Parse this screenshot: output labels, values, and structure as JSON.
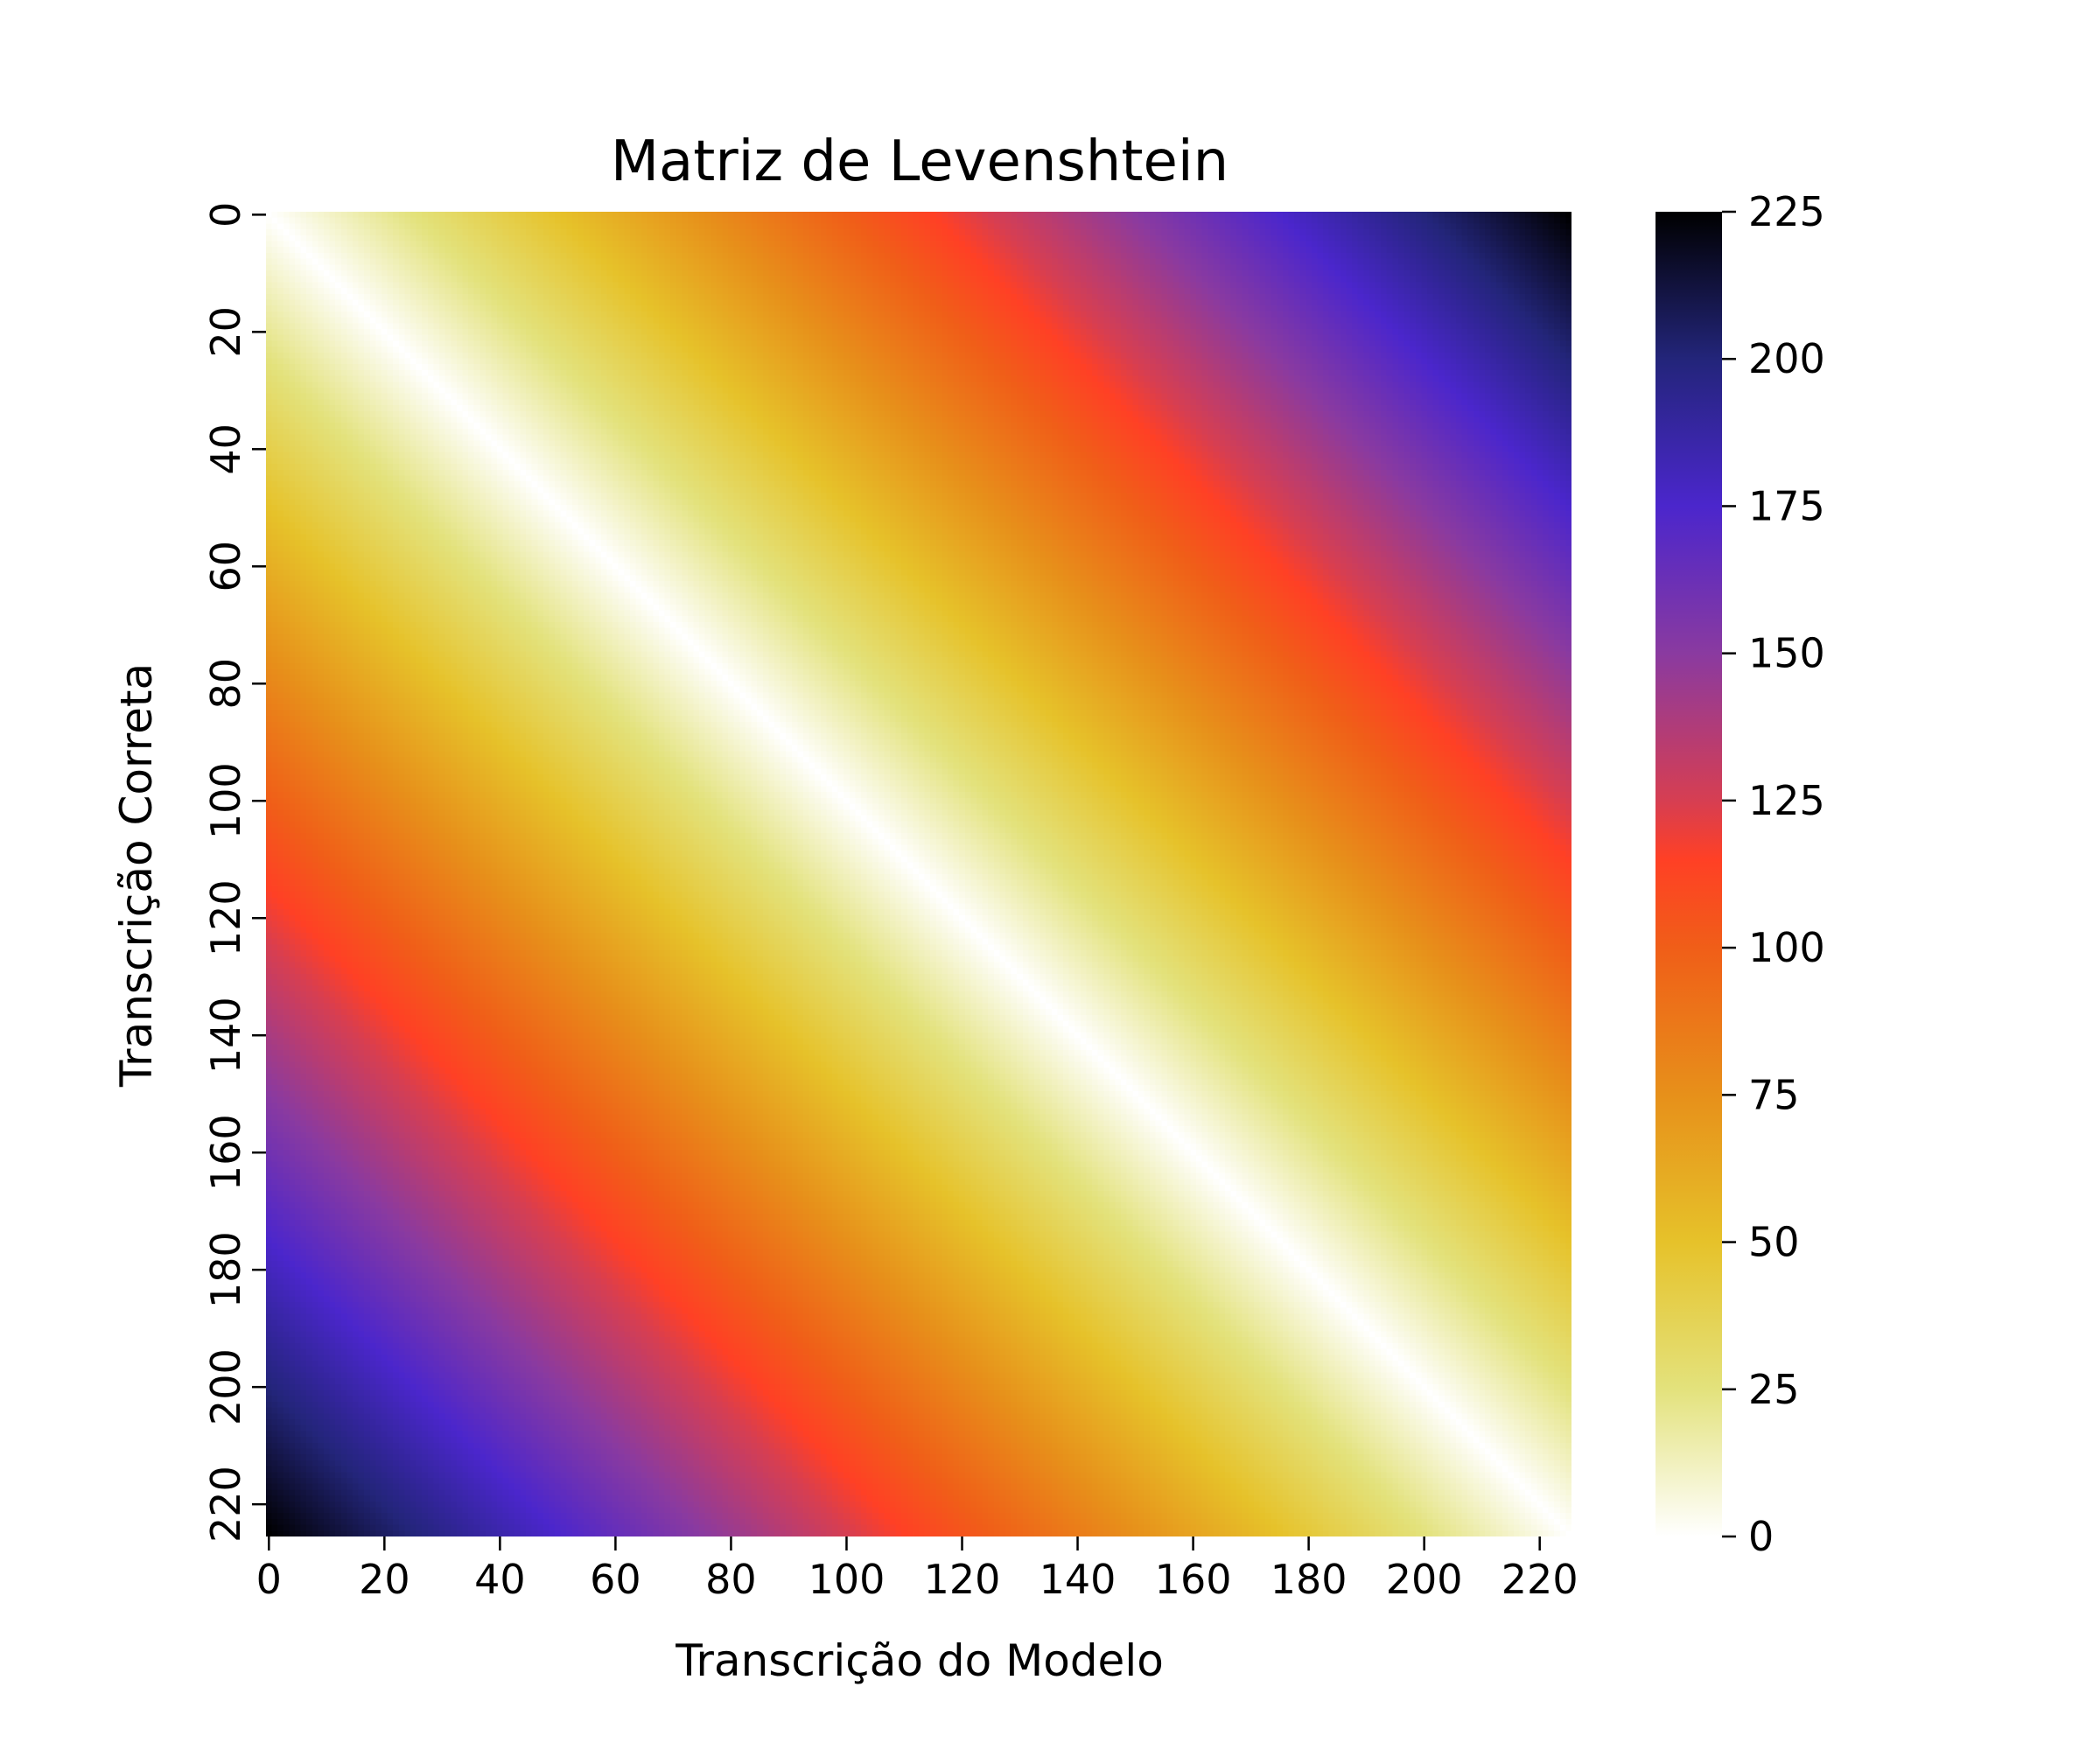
{
  "chart_data": {
    "type": "heatmap",
    "title": "Matriz de Levenshtein",
    "xlabel": "Transcrição do Modelo",
    "ylabel": "Transcrição Correta",
    "x_range": [
      0,
      226
    ],
    "y_range": [
      0,
      226
    ],
    "x_ticks": [
      "0",
      "20",
      "40",
      "60",
      "80",
      "100",
      "120",
      "140",
      "160",
      "180",
      "200",
      "220"
    ],
    "y_ticks": [
      "0",
      "20",
      "40",
      "60",
      "80",
      "100",
      "120",
      "140",
      "160",
      "180",
      "200",
      "220"
    ],
    "y_axis_inverted": true,
    "value_description": "Levenshtein edit distance between prefixes; 0 along the main diagonal, increasing with distance from it",
    "corner_values": {
      "top_left": 0,
      "top_right": 225,
      "bottom_left": 225,
      "bottom_right": 0
    },
    "value_range": [
      0,
      225
    ],
    "colormap": "CMRmap_r",
    "colorbar": {
      "ticks": [
        "0",
        "25",
        "50",
        "75",
        "100",
        "125",
        "150",
        "175",
        "200",
        "225"
      ],
      "colors": [
        {
          "value": 0,
          "color": "#ffffff"
        },
        {
          "value": 25,
          "color": "#e3e27c"
        },
        {
          "value": 50,
          "color": "#e6c22a"
        },
        {
          "value": 75,
          "color": "#e7901a"
        },
        {
          "value": 100,
          "color": "#f05e18"
        },
        {
          "value": 115,
          "color": "#ff4025"
        },
        {
          "value": 125,
          "color": "#d63e52"
        },
        {
          "value": 150,
          "color": "#8a3aa0"
        },
        {
          "value": 175,
          "color": "#4b26cc"
        },
        {
          "value": 200,
          "color": "#23257a"
        },
        {
          "value": 225,
          "color": "#000000"
        }
      ]
    },
    "grid": false
  }
}
